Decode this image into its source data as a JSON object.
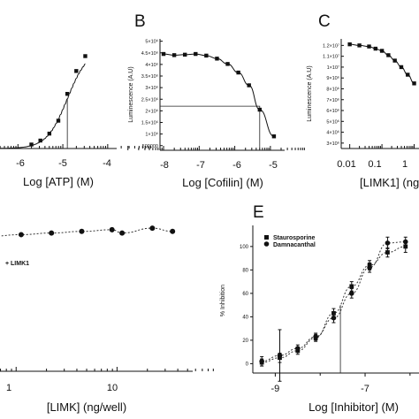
{
  "chart_data": [
    {
      "panel_label": "",
      "type": "line",
      "xlabel": "Log [ATP] (M)",
      "ylabel": "",
      "x_ticks": [
        "-6",
        "-5",
        "-4"
      ],
      "xlim": [
        -6.4,
        -3.8
      ],
      "ylim": [
        0,
        1.05
      ],
      "x": [
        -5.7,
        -5.5,
        -5.3,
        -5.1,
        -4.9,
        -4.7,
        -4.5
      ],
      "values": [
        0.04,
        0.08,
        0.15,
        0.28,
        0.55,
        0.78,
        0.93
      ],
      "ec50_x": -4.9
    },
    {
      "panel_label": "B",
      "type": "line",
      "xlabel": "Log [Cofilin] (M)",
      "ylabel": "Luminescence (A.U)",
      "x_ticks": [
        "-8",
        "-7",
        "-6",
        "-5"
      ],
      "y_ticks": [
        "500000",
        "1×10⁶",
        "1.5×10⁶",
        "2×10⁶",
        "2.5×10⁶",
        "3×10⁶",
        "3.5×10⁶",
        "4×10⁶",
        "4.5×10⁶",
        "5×10⁶"
      ],
      "xlim": [
        -8.1,
        -4.6
      ],
      "ylim": [
        300000,
        5100000
      ],
      "x": [
        -8.0,
        -7.7,
        -7.4,
        -7.1,
        -6.8,
        -6.5,
        -6.2,
        -5.9,
        -5.6,
        -5.3,
        -4.9
      ],
      "values": [
        4450000,
        4400000,
        4420000,
        4450000,
        4380000,
        4250000,
        4020000,
        3650000,
        3100000,
        2050000,
        900000
      ],
      "ref_x": -5.3,
      "ref_y": 2200000
    },
    {
      "panel_label": "C",
      "type": "line",
      "xlabel": "[LIMK1] (ng",
      "ylabel": "Luminescence (A.U)",
      "x_ticks": [
        "0.01",
        "0.1",
        "1"
      ],
      "y_ticks": [
        "3×10⁶",
        "4×10⁶",
        "5×10⁶",
        "6×10⁶",
        "7×10⁶",
        "8×10⁶",
        "9×10⁶",
        "1×10⁷",
        "1.1×10⁷",
        "1.2×10⁷"
      ],
      "xlim": [
        -2.1,
        0.15
      ],
      "ylim": [
        2500000,
        12600000
      ],
      "x": [
        -2.0,
        -1.7,
        -1.4,
        -1.2,
        -1.0,
        -0.8,
        -0.6,
        -0.4,
        -0.2,
        0.0
      ],
      "values": [
        12100000,
        12000000,
        11900000,
        11700000,
        11500000,
        11100000,
        10600000,
        10000000,
        9300000,
        8500000
      ]
    },
    {
      "panel_label": "",
      "type": "line",
      "xlabel": "[LIMK]  (ng/well)",
      "ylabel": "",
      "legend": "+ LIMK1",
      "x_ticks": [
        "1",
        "10"
      ],
      "xlim": [
        -0.3,
        1.75
      ],
      "ylim": [
        0,
        100
      ],
      "x": [
        -0.25,
        0.05,
        0.35,
        0.65,
        0.95,
        1.05,
        1.35,
        1.55
      ],
      "values": [
        83,
        84,
        85,
        86,
        87,
        85,
        88,
        86
      ]
    },
    {
      "panel_label": "E",
      "type": "line",
      "xlabel": "Log [Inhibitor] (M)",
      "ylabel": "% Inhibition",
      "x_ticks": [
        "-9",
        "-7"
      ],
      "y_ticks": [
        "0",
        "20",
        "40",
        "60",
        "80",
        "100"
      ],
      "xlim": [
        -9.5,
        -5.8
      ],
      "ylim": [
        -8,
        118
      ],
      "series": [
        {
          "name": "Staurosporine",
          "marker": "square",
          "x": [
            -9.3,
            -8.9,
            -8.5,
            -8.1,
            -7.7,
            -7.3,
            -6.9,
            -6.5,
            -6.1
          ],
          "values": [
            1,
            5,
            11,
            22,
            43,
            66,
            84,
            95,
            100
          ],
          "err": [
            3,
            4,
            3,
            3,
            4,
            4,
            4,
            4,
            5
          ]
        },
        {
          "name": "Damnacanthal",
          "marker": "circle",
          "x": [
            -9.3,
            -8.9,
            -8.5,
            -8.1,
            -7.7,
            -7.3,
            -6.9,
            -6.5,
            -6.1
          ],
          "values": [
            2,
            7,
            13,
            23,
            39,
            60,
            82,
            103,
            104
          ],
          "err": [
            4,
            22,
            3,
            3,
            4,
            4,
            4,
            5,
            4
          ]
        }
      ],
      "ic50_x": -7.55
    }
  ]
}
